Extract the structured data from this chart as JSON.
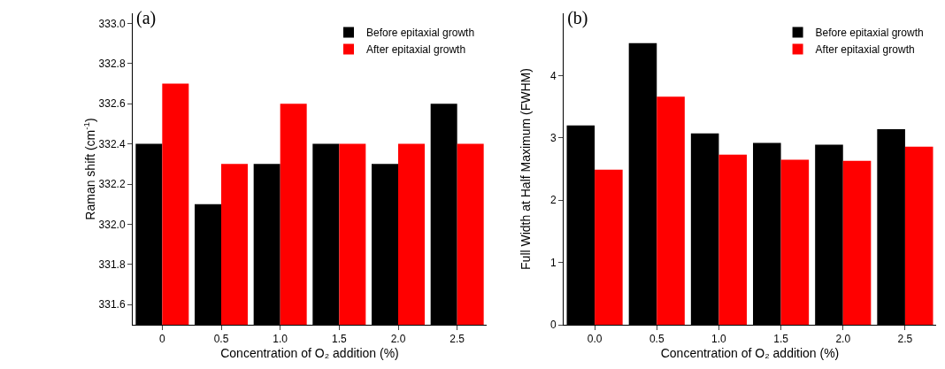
{
  "chart_data": [
    {
      "type": "bar",
      "title": "(a)",
      "xlabel": "Concentration of O₂ addition (%)",
      "ylabel": "Raman shift (cm$^{-1}$)",
      "categories": [
        "0",
        "0.5",
        "1.0",
        "1.5",
        "2.0",
        "2.5"
      ],
      "series": [
        {
          "name": "Before epitaxial growth",
          "color": "#000000",
          "values": [
            332.4,
            332.1,
            332.3,
            332.4,
            332.3,
            332.6
          ]
        },
        {
          "name": "After epitaxial growth",
          "color": "#ff0000",
          "values": [
            332.7,
            332.3,
            332.6,
            332.4,
            332.4,
            332.4
          ]
        }
      ],
      "ylim": [
        331.5,
        333.05
      ],
      "yticks": [
        331.6,
        331.8,
        {
          "value": 332,
          "label": "332.0"
        },
        332.2,
        332.4,
        332.6,
        332.8,
        {
          "value": 333,
          "label": "333.0"
        }
      ],
      "grid": false,
      "legend": "top right"
    },
    {
      "type": "bar",
      "title": "(b)",
      "xlabel": "Concentration of O₂ addition (%)",
      "ylabel": "Full Width at Half Maximum (FWHM)",
      "categories": [
        "0.0",
        "0.5",
        "1.0",
        "1.5",
        "2.0",
        "2.5"
      ],
      "series": [
        {
          "name": "Before epitaxial growth",
          "color": "#000000",
          "values": [
            3.2,
            4.52,
            3.07,
            2.92,
            2.89,
            3.14
          ]
        },
        {
          "name": "After epitaxial growth",
          "color": "#ff0000",
          "values": [
            2.49,
            3.66,
            2.73,
            2.65,
            2.63,
            2.86
          ]
        }
      ],
      "ylim": [
        0,
        5
      ],
      "yticks": [
        0,
        1,
        2,
        3,
        4
      ],
      "grid": false,
      "legend": "top right"
    }
  ]
}
